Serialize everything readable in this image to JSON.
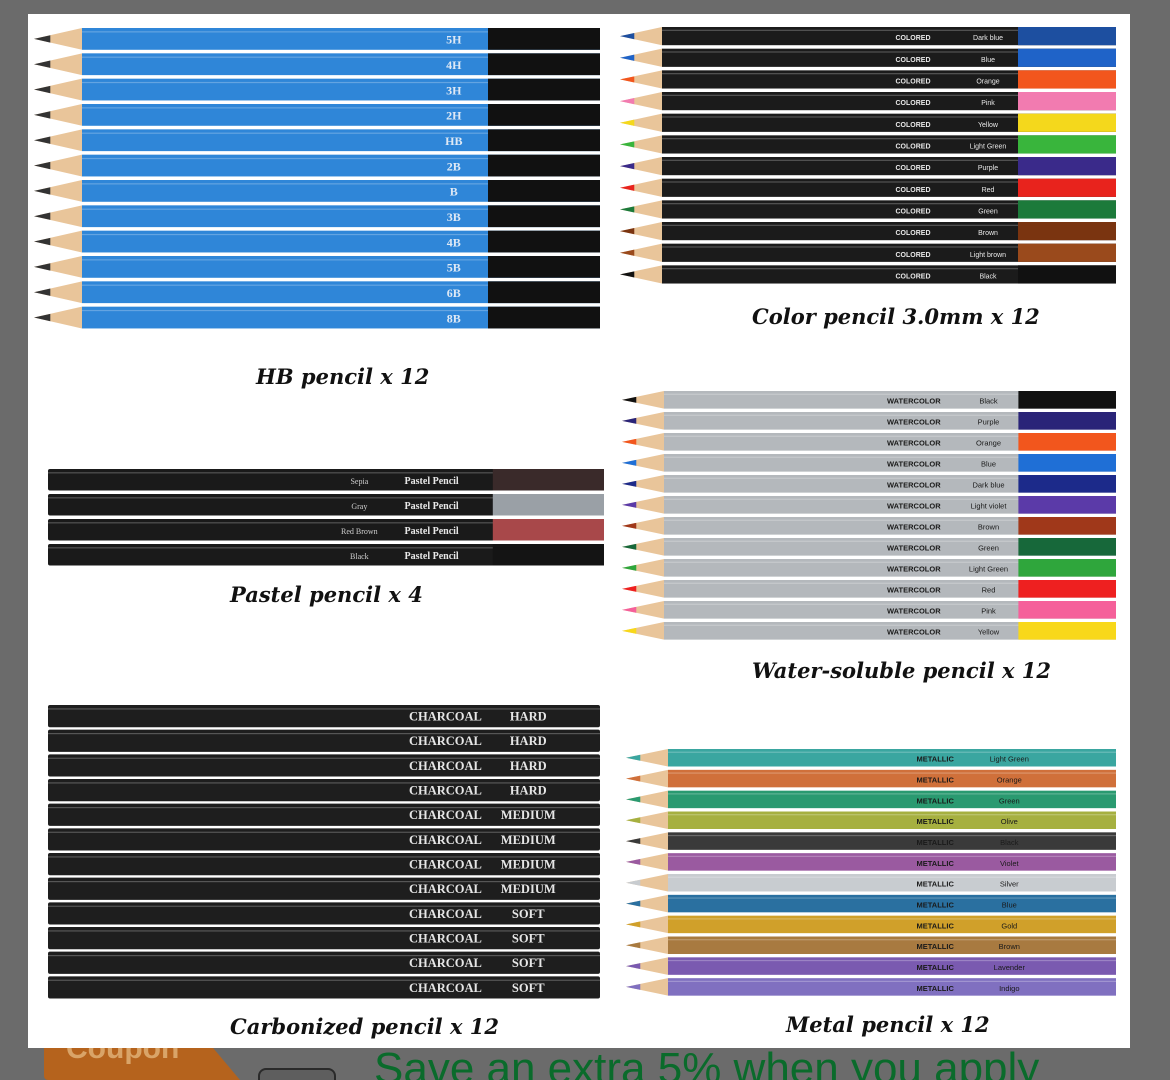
{
  "captions": {
    "hb": "HB pencil x 12",
    "color": "Color pencil 3.0mm x 12",
    "pastel": "Pastel pencil x 4",
    "water": "Water-soluble pencil x 12",
    "charcoal": "Carbonized pencil x 12",
    "metal": "Metal pencil x 12"
  },
  "hb_grades": [
    "5H",
    "4H",
    "3H",
    "2H",
    "HB",
    "2B",
    "B",
    "3B",
    "4B",
    "5B",
    "6B",
    "8B"
  ],
  "color_pencils": [
    {
      "brand": "COLORED",
      "name": "Dark blue",
      "color": "#1d4fa0"
    },
    {
      "brand": "COLORED",
      "name": "Blue",
      "color": "#1f63c8"
    },
    {
      "brand": "COLORED",
      "name": "Orange",
      "color": "#f2561d"
    },
    {
      "brand": "COLORED",
      "name": "Pink",
      "color": "#f27bb0"
    },
    {
      "brand": "COLORED",
      "name": "Yellow",
      "color": "#f4d81c"
    },
    {
      "brand": "COLORED",
      "name": "Light Green",
      "color": "#39b53c"
    },
    {
      "brand": "COLORED",
      "name": "Purple",
      "color": "#3a2a8a"
    },
    {
      "brand": "COLORED",
      "name": "Red",
      "color": "#e8231d"
    },
    {
      "brand": "COLORED",
      "name": "Green",
      "color": "#1c7a3a"
    },
    {
      "brand": "COLORED",
      "name": "Brown",
      "color": "#7a3410"
    },
    {
      "brand": "COLORED",
      "name": "Light brown",
      "color": "#9a4a1c"
    },
    {
      "brand": "COLORED",
      "name": "Black",
      "color": "#111111"
    }
  ],
  "pastel_pencils": [
    {
      "name": "Sepia",
      "label": "Pastel Pencil",
      "color": "#3a2a2a"
    },
    {
      "name": "Gray",
      "label": "Pastel Pencil",
      "color": "#9aa0a6"
    },
    {
      "name": "Red Brown",
      "label": "Pastel Pencil",
      "color": "#a8484a"
    },
    {
      "name": "Black",
      "label": "Pastel Pencil",
      "color": "#141414"
    }
  ],
  "water_pencils": [
    {
      "brand": "WATERCOLOR",
      "name": "Black",
      "color": "#111111"
    },
    {
      "brand": "WATERCOLOR",
      "name": "Purple",
      "color": "#2a2478"
    },
    {
      "brand": "WATERCOLOR",
      "name": "Orange",
      "color": "#f2561d"
    },
    {
      "brand": "WATERCOLOR",
      "name": "Blue",
      "color": "#1f6fd6"
    },
    {
      "brand": "WATERCOLOR",
      "name": "Dark blue",
      "color": "#1c2a8a"
    },
    {
      "brand": "WATERCOLOR",
      "name": "Light violet",
      "color": "#5b3aa8"
    },
    {
      "brand": "WATERCOLOR",
      "name": "Brown",
      "color": "#a0381a"
    },
    {
      "brand": "WATERCOLOR",
      "name": "Green",
      "color": "#17683a"
    },
    {
      "brand": "WATERCOLOR",
      "name": "Light Green",
      "color": "#2fa63c"
    },
    {
      "brand": "WATERCOLOR",
      "name": "Red",
      "color": "#ee2020"
    },
    {
      "brand": "WATERCOLOR",
      "name": "Pink",
      "color": "#f5609a"
    },
    {
      "brand": "WATERCOLOR",
      "name": "Yellow",
      "color": "#f8d81a"
    }
  ],
  "charcoal_pencils": [
    {
      "brand": "CHARCOAL",
      "grade": "HARD"
    },
    {
      "brand": "CHARCOAL",
      "grade": "HARD"
    },
    {
      "brand": "CHARCOAL",
      "grade": "HARD"
    },
    {
      "brand": "CHARCOAL",
      "grade": "HARD"
    },
    {
      "brand": "CHARCOAL",
      "grade": "MEDIUM"
    },
    {
      "brand": "CHARCOAL",
      "grade": "MEDIUM"
    },
    {
      "brand": "CHARCOAL",
      "grade": "MEDIUM"
    },
    {
      "brand": "CHARCOAL",
      "grade": "MEDIUM"
    },
    {
      "brand": "CHARCOAL",
      "grade": "SOFT"
    },
    {
      "brand": "CHARCOAL",
      "grade": "SOFT"
    },
    {
      "brand": "CHARCOAL",
      "grade": "SOFT"
    },
    {
      "brand": "CHARCOAL",
      "grade": "SOFT"
    }
  ],
  "metal_pencils": [
    {
      "brand": "METALLIC",
      "name": "Light Green",
      "color": "#3aa6a0"
    },
    {
      "brand": "METALLIC",
      "name": "Orange",
      "color": "#d0703a"
    },
    {
      "brand": "METALLIC",
      "name": "Green",
      "color": "#2a9a70"
    },
    {
      "brand": "METALLIC",
      "name": "Olive",
      "color": "#a6b040"
    },
    {
      "brand": "METALLIC",
      "name": "Black",
      "color": "#3a3a3a"
    },
    {
      "brand": "METALLIC",
      "name": "Violet",
      "color": "#9a5aa0"
    },
    {
      "brand": "METALLIC",
      "name": "Silver",
      "color": "#c8ccd0"
    },
    {
      "brand": "METALLIC",
      "name": "Blue",
      "color": "#2a70a0"
    },
    {
      "brand": "METALLIC",
      "name": "Gold",
      "color": "#d0a02a"
    },
    {
      "brand": "METALLIC",
      "name": "Brown",
      "color": "#a87a40"
    },
    {
      "brand": "METALLIC",
      "name": "Lavender",
      "color": "#7a5ab0"
    },
    {
      "brand": "METALLIC",
      "name": "Indigo",
      "color": "#8070c0"
    }
  ],
  "bottom_bar": {
    "coupon_label": "Coupon",
    "save_text": "Save an extra 5% when you apply"
  },
  "colors": {
    "hb_body": "#2f86d8",
    "charcoal_body": "#1e1e1e",
    "water_body": "#b4b8bc",
    "wood": "#e9c59a",
    "page_bg": "#6b6b6b"
  }
}
